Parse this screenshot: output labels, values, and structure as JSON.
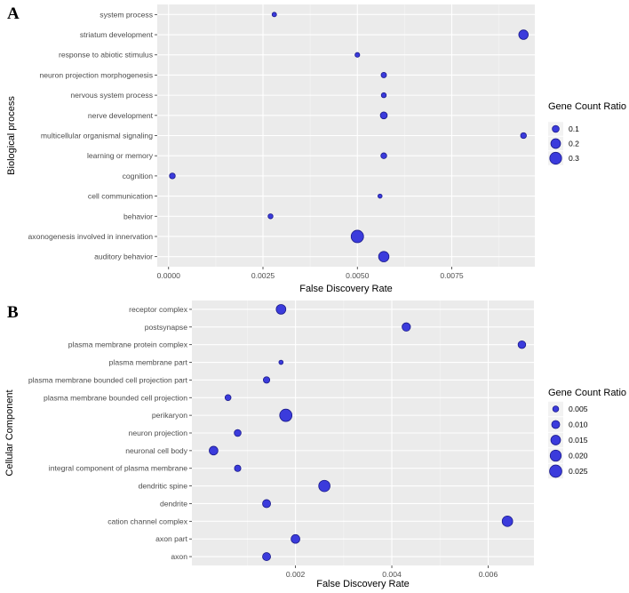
{
  "chart_data": [
    {
      "type": "scatter",
      "panel_letter": "A",
      "xlabel": "False Discovery Rate",
      "ylabel": "Biological process",
      "xlim": [
        -0.0003,
        0.0097
      ],
      "x_ticks": [
        0,
        0.0025,
        0.005,
        0.0075
      ],
      "x_tick_labels": [
        "0.0000",
        "0.0025",
        "0.0050",
        "0.0075"
      ],
      "legend_title": "Gene Count Ratio",
      "legend_values": [
        0.1,
        0.2,
        0.3
      ],
      "legend_labels": [
        "0.1",
        "0.2",
        "0.3"
      ],
      "size_domain": [
        0.03,
        0.33
      ],
      "categories": [
        "system process",
        "striatum development",
        "response to abiotic stimulus",
        "neuron projection morphogenesis",
        "nervous system process",
        "nerve development",
        "multicellular organismal signaling",
        "learning or memory",
        "cognition",
        "cell communication",
        "behavior",
        "axonogenesis involved in innervation",
        "auditory behavior"
      ],
      "points": [
        {
          "category": "system process",
          "fdr": 0.0028,
          "ratio": 0.04
        },
        {
          "category": "striatum development",
          "fdr": 0.0094,
          "ratio": 0.19
        },
        {
          "category": "response to abiotic stimulus",
          "fdr": 0.005,
          "ratio": 0.045
        },
        {
          "category": "neuron projection morphogenesis",
          "fdr": 0.0057,
          "ratio": 0.06
        },
        {
          "category": "nervous system process",
          "fdr": 0.0057,
          "ratio": 0.05
        },
        {
          "category": "nerve development",
          "fdr": 0.0057,
          "ratio": 0.1
        },
        {
          "category": "multicellular organismal signaling",
          "fdr": 0.0094,
          "ratio": 0.07
        },
        {
          "category": "learning or memory",
          "fdr": 0.0057,
          "ratio": 0.07
        },
        {
          "category": "cognition",
          "fdr": 0.0001,
          "ratio": 0.07
        },
        {
          "category": "cell communication",
          "fdr": 0.0056,
          "ratio": 0.035
        },
        {
          "category": "behavior",
          "fdr": 0.0027,
          "ratio": 0.05
        },
        {
          "category": "axonogenesis involved in innervation",
          "fdr": 0.005,
          "ratio": 0.33
        },
        {
          "category": "auditory behavior",
          "fdr": 0.0057,
          "ratio": 0.23
        }
      ]
    },
    {
      "type": "scatter",
      "panel_letter": "B",
      "xlabel": "False Discovery Rate",
      "ylabel": "Cellular Component",
      "xlim": [
        -0.00015,
        0.00695
      ],
      "x_ticks": [
        0.002,
        0.004,
        0.006
      ],
      "x_tick_labels": [
        "0.002",
        "0.004",
        "0.006"
      ],
      "legend_title": "Gene Count Ratio",
      "legend_values": [
        0.005,
        0.01,
        0.015,
        0.02,
        0.025
      ],
      "legend_labels": [
        "0.005",
        "0.010",
        "0.015",
        "0.020",
        "0.025"
      ],
      "size_domain": [
        0.0015,
        0.0255
      ],
      "categories": [
        "receptor complex",
        "postsynapse",
        "plasma membrane protein complex",
        "plasma membrane part",
        "plasma membrane bounded cell projection part",
        "plasma membrane bounded cell projection",
        "perikaryon",
        "neuron projection",
        "neuronal cell body",
        "integral component of plasma membrane",
        "dendritic spine",
        "dendrite",
        "cation channel complex",
        "axon part",
        "axon"
      ],
      "points": [
        {
          "category": "receptor complex",
          "fdr": 0.0017,
          "ratio": 0.015
        },
        {
          "category": "postsynapse",
          "fdr": 0.0043,
          "ratio": 0.011
        },
        {
          "category": "plasma membrane protein complex",
          "fdr": 0.0067,
          "ratio": 0.009
        },
        {
          "category": "plasma membrane part",
          "fdr": 0.0017,
          "ratio": 0.002
        },
        {
          "category": "plasma membrane bounded cell projection part",
          "fdr": 0.0014,
          "ratio": 0.006
        },
        {
          "category": "plasma membrane bounded cell projection",
          "fdr": 0.0006,
          "ratio": 0.005
        },
        {
          "category": "perikaryon",
          "fdr": 0.0018,
          "ratio": 0.025
        },
        {
          "category": "neuron projection",
          "fdr": 0.0008,
          "ratio": 0.007
        },
        {
          "category": "neuronal cell body",
          "fdr": 0.0003,
          "ratio": 0.012
        },
        {
          "category": "integral component of plasma membrane",
          "fdr": 0.0008,
          "ratio": 0.006
        },
        {
          "category": "dendritic spine",
          "fdr": 0.0026,
          "ratio": 0.021
        },
        {
          "category": "dendrite",
          "fdr": 0.0014,
          "ratio": 0.01
        },
        {
          "category": "cation channel complex",
          "fdr": 0.0064,
          "ratio": 0.018
        },
        {
          "category": "axon part",
          "fdr": 0.002,
          "ratio": 0.012
        },
        {
          "category": "axon",
          "fdr": 0.0014,
          "ratio": 0.01
        }
      ]
    }
  ]
}
